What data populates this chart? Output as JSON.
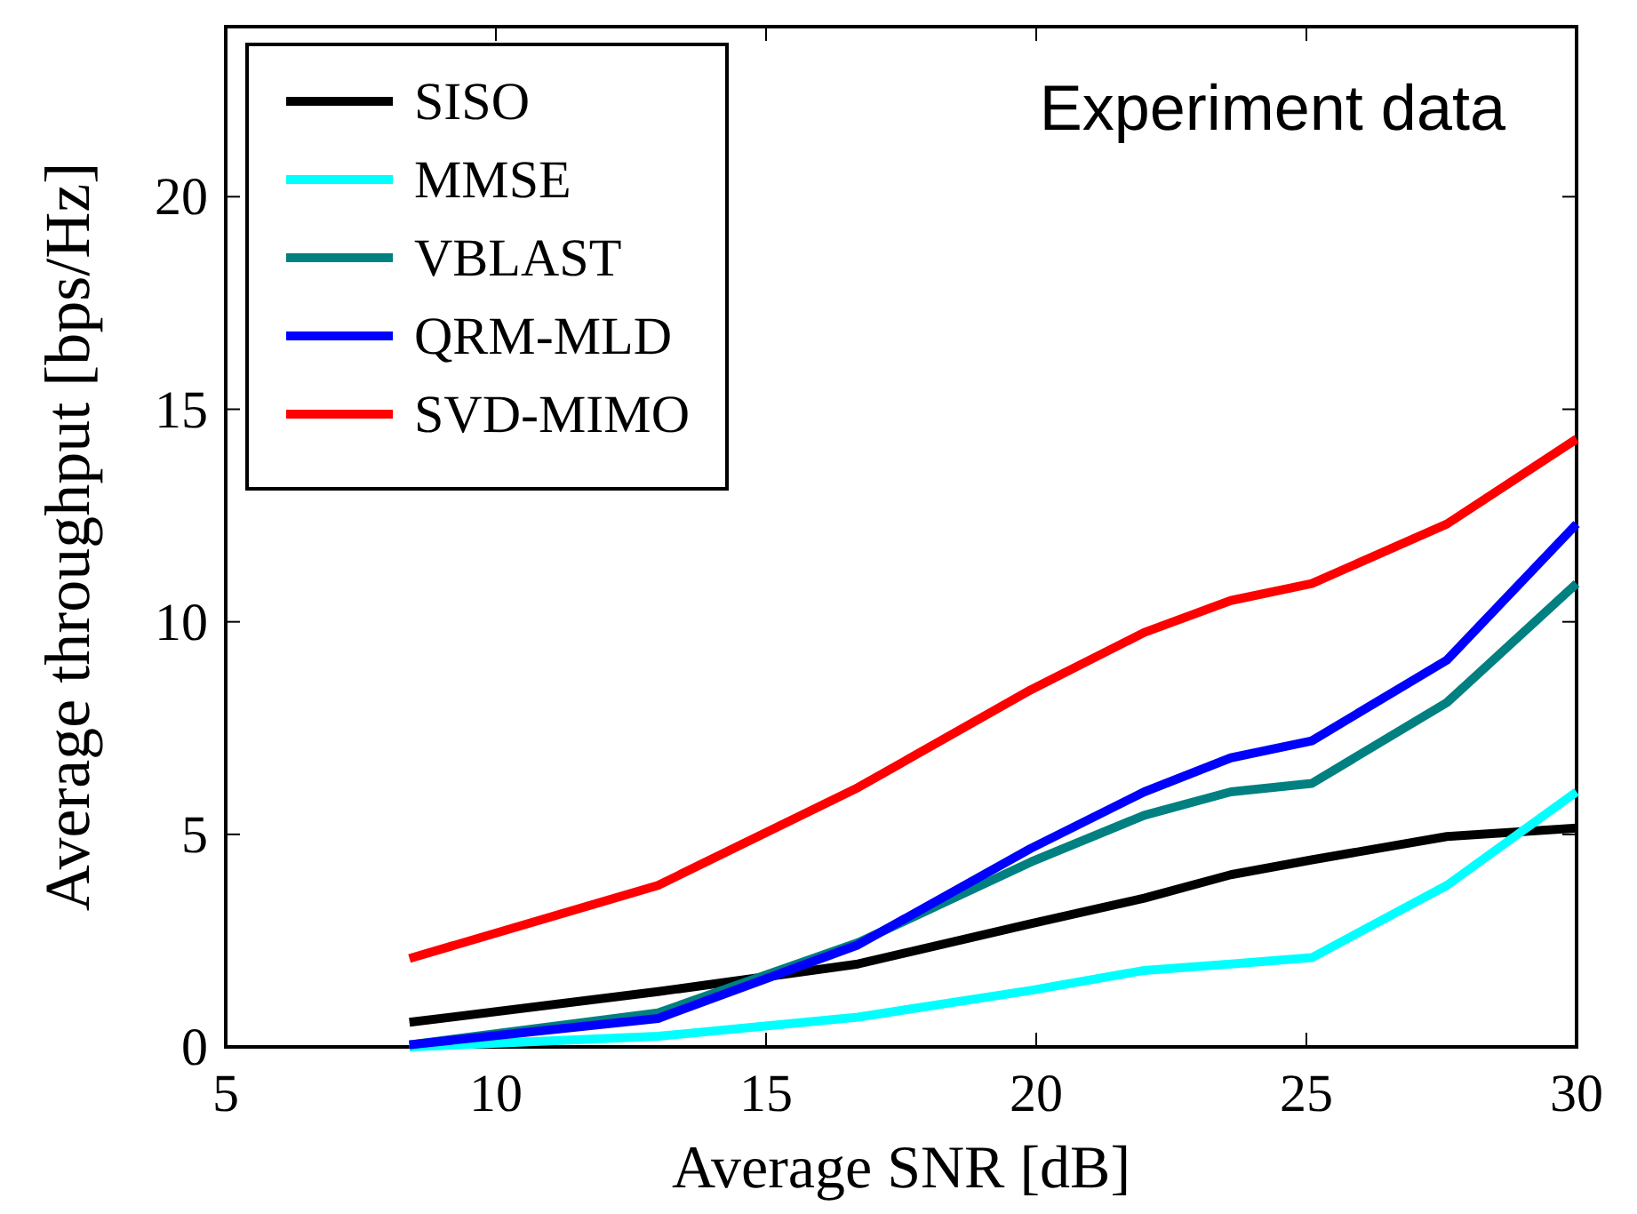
{
  "chart_data": {
    "type": "line",
    "xlabel": "Average SNR [dB]",
    "ylabel": "Average throughput [bps/Hz]",
    "annotations": [
      "Experiment data"
    ],
    "x": [
      8.4,
      13.0,
      16.7,
      19.9,
      22.0,
      23.6,
      25.1,
      27.6,
      30
    ],
    "xlim": [
      5,
      30
    ],
    "xticks": [
      5,
      10,
      15,
      20,
      25,
      30
    ],
    "ylim": [
      0,
      24
    ],
    "yticks": [
      0,
      5,
      10,
      15,
      20
    ],
    "grid": false,
    "legend": "top left",
    "line_style": "solid",
    "marker": "none",
    "series": [
      {
        "name": "SISO",
        "color": "#000000",
        "values": [
          0.58,
          1.3,
          1.95,
          2.9,
          3.5,
          4.05,
          4.4,
          4.95,
          5.15
        ]
      },
      {
        "name": "MMSE",
        "color": "#00ffff",
        "values": [
          0,
          0.25,
          0.7,
          1.33,
          1.8,
          1.95,
          2.1,
          3.8,
          6.0
        ]
      },
      {
        "name": "VBLAST",
        "color": "#008080",
        "values": [
          0.05,
          0.8,
          2.45,
          4.35,
          5.45,
          6.0,
          6.2,
          8.1,
          10.9
        ]
      },
      {
        "name": "QRM-MLD",
        "color": "#0000ff",
        "values": [
          0.05,
          0.67,
          2.4,
          4.67,
          6.0,
          6.8,
          7.2,
          9.1,
          12.3
        ]
      },
      {
        "name": "SVD-MIMO",
        "color": "#ff0000",
        "values": [
          2.08,
          3.8,
          6.1,
          8.4,
          9.75,
          10.5,
          10.9,
          12.3,
          14.3
        ]
      }
    ]
  }
}
